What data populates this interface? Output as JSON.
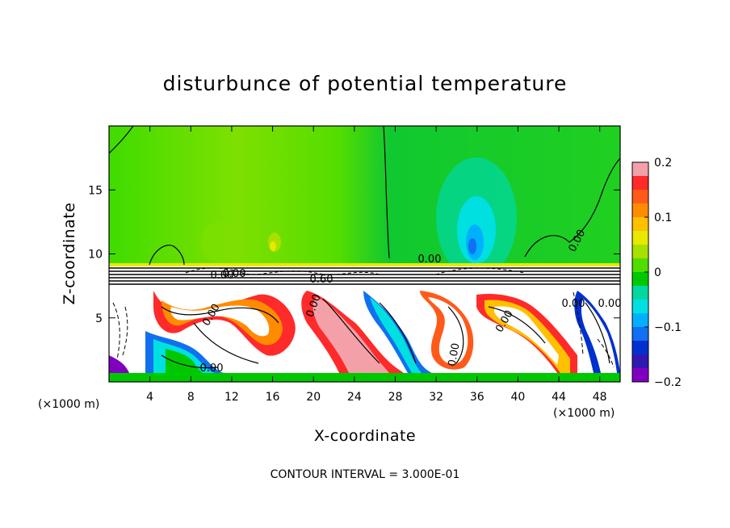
{
  "chart_data": {
    "type": "heatmap",
    "title": "disturbunce of potential temperature",
    "xlabel": "X-coordinate",
    "ylabel": "Z-coordinate",
    "x_unit": "(×1000 m)",
    "x_unit_right": "(×1000 m)",
    "xlim": [
      0,
      50
    ],
    "ylim": [
      0,
      20
    ],
    "x_ticks": [
      4,
      8,
      12,
      16,
      20,
      24,
      28,
      32,
      36,
      40,
      44,
      48
    ],
    "y_ticks": [
      5,
      10,
      15
    ],
    "colorbar": {
      "range": [
        -0.2,
        0.2
      ],
      "tick_values": [
        0.2,
        0.1,
        0,
        -0.1,
        -0.2
      ],
      "tick_labels": [
        "0.2",
        "0.1",
        "0",
        "−0.1",
        "−0.2"
      ],
      "colors": [
        "#f4a0a8",
        "#ff2a2a",
        "#ff5a1a",
        "#ff8c00",
        "#ffc000",
        "#e8e800",
        "#a8e000",
        "#50dd00",
        "#00c800",
        "#00d8a0",
        "#00e0e0",
        "#00b0ff",
        "#1070f0",
        "#0030d0",
        "#3018b0",
        "#8000c0"
      ]
    },
    "contour_labels": [
      "0.00",
      "0.00",
      "0.60",
      "0.00",
      "0.00",
      "0.00",
      "0.00",
      "0.00",
      "0.00",
      "0.00",
      "0.00",
      "0.00"
    ],
    "footer": "CONTOUR INTERVAL = 3.000E-01"
  }
}
